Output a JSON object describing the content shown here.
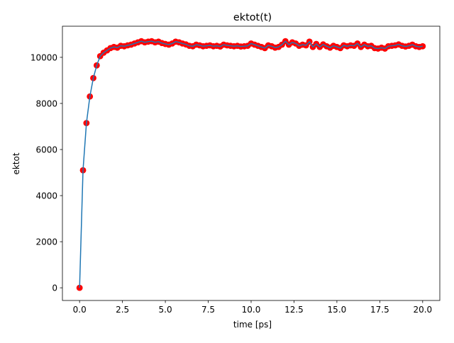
{
  "chart_data": {
    "type": "scatter",
    "title": "ektot(t)",
    "xlabel": "time [ps]",
    "ylabel": "ektot",
    "xlim": [
      -1.0,
      21.0
    ],
    "ylim": [
      -550,
      11350
    ],
    "xticks": [
      0.0,
      2.5,
      5.0,
      7.5,
      10.0,
      12.5,
      15.0,
      17.5,
      20.0
    ],
    "xtick_labels": [
      "0.0",
      "2.5",
      "5.0",
      "7.5",
      "10.0",
      "12.5",
      "15.0",
      "17.5",
      "20.0"
    ],
    "yticks": [
      0,
      2000,
      4000,
      6000,
      8000,
      10000
    ],
    "ytick_labels": [
      "0",
      "2000",
      "4000",
      "6000",
      "8000",
      "10000"
    ],
    "grid": false,
    "series": [
      {
        "style": "line",
        "color": "#1f77b4",
        "x": [
          0.0,
          0.2,
          0.4,
          0.6,
          0.8,
          1.0,
          1.2,
          1.4,
          1.6,
          1.8,
          2.0,
          2.2,
          2.4,
          2.6,
          2.8,
          3.0,
          3.2,
          3.4,
          3.6,
          3.8,
          4.0,
          4.2,
          4.4,
          4.6,
          4.8,
          5.0,
          5.2,
          5.4,
          5.6,
          5.8,
          6.0,
          6.2,
          6.4,
          6.6,
          6.8,
          7.0,
          7.2,
          7.4,
          7.6,
          7.8,
          8.0,
          8.2,
          8.4,
          8.6,
          8.8,
          9.0,
          9.2,
          9.4,
          9.6,
          9.8,
          10.0,
          10.2,
          10.4,
          10.6,
          10.8,
          11.0,
          11.2,
          11.4,
          11.6,
          11.8,
          12.0,
          12.2,
          12.4,
          12.6,
          12.8,
          13.0,
          13.2,
          13.4,
          13.6,
          13.8,
          14.0,
          14.2,
          14.4,
          14.6,
          14.8,
          15.0,
          15.2,
          15.4,
          15.6,
          15.8,
          16.0,
          16.2,
          16.4,
          16.6,
          16.8,
          17.0,
          17.2,
          17.4,
          17.6,
          17.8,
          18.0,
          18.2,
          18.4,
          18.6,
          18.8,
          19.0,
          19.2,
          19.4,
          19.6,
          19.8,
          20.0
        ],
        "y": [
          0,
          5100,
          7150,
          8300,
          9100,
          9650,
          10050,
          10200,
          10300,
          10400,
          10450,
          10420,
          10500,
          10480,
          10520,
          10550,
          10600,
          10650,
          10700,
          10650,
          10680,
          10700,
          10650,
          10680,
          10620,
          10580,
          10550,
          10600,
          10680,
          10650,
          10600,
          10560,
          10500,
          10480,
          10550,
          10520,
          10480,
          10500,
          10520,
          10480,
          10500,
          10470,
          10550,
          10520,
          10500,
          10480,
          10500,
          10470,
          10480,
          10500,
          10600,
          10550,
          10500,
          10450,
          10400,
          10520,
          10480,
          10420,
          10450,
          10550,
          10700,
          10550,
          10650,
          10600,
          10500,
          10550,
          10520,
          10680,
          10450,
          10580,
          10450,
          10560,
          10480,
          10420,
          10500,
          10450,
          10400,
          10520,
          10480,
          10520,
          10500,
          10600,
          10450,
          10550,
          10480,
          10500,
          10400,
          10380,
          10420,
          10380,
          10480,
          10500,
          10520,
          10560,
          10500,
          10470,
          10500,
          10550,
          10480,
          10450,
          10480
        ]
      },
      {
        "style": "scatter",
        "color": "#ff0000",
        "x": [
          0.0,
          0.2,
          0.4,
          0.6,
          0.8,
          1.0,
          1.2,
          1.4,
          1.6,
          1.8,
          2.0,
          2.2,
          2.4,
          2.6,
          2.8,
          3.0,
          3.2,
          3.4,
          3.6,
          3.8,
          4.0,
          4.2,
          4.4,
          4.6,
          4.8,
          5.0,
          5.2,
          5.4,
          5.6,
          5.8,
          6.0,
          6.2,
          6.4,
          6.6,
          6.8,
          7.0,
          7.2,
          7.4,
          7.6,
          7.8,
          8.0,
          8.2,
          8.4,
          8.6,
          8.8,
          9.0,
          9.2,
          9.4,
          9.6,
          9.8,
          10.0,
          10.2,
          10.4,
          10.6,
          10.8,
          11.0,
          11.2,
          11.4,
          11.6,
          11.8,
          12.0,
          12.2,
          12.4,
          12.6,
          12.8,
          13.0,
          13.2,
          13.4,
          13.6,
          13.8,
          14.0,
          14.2,
          14.4,
          14.6,
          14.8,
          15.0,
          15.2,
          15.4,
          15.6,
          15.8,
          16.0,
          16.2,
          16.4,
          16.6,
          16.8,
          17.0,
          17.2,
          17.4,
          17.6,
          17.8,
          18.0,
          18.2,
          18.4,
          18.6,
          18.8,
          19.0,
          19.2,
          19.4,
          19.6,
          19.8,
          20.0
        ],
        "y": [
          0,
          5100,
          7150,
          8300,
          9100,
          9650,
          10050,
          10200,
          10300,
          10400,
          10450,
          10420,
          10500,
          10480,
          10520,
          10550,
          10600,
          10650,
          10700,
          10650,
          10680,
          10700,
          10650,
          10680,
          10620,
          10580,
          10550,
          10600,
          10680,
          10650,
          10600,
          10560,
          10500,
          10480,
          10550,
          10520,
          10480,
          10500,
          10520,
          10480,
          10500,
          10470,
          10550,
          10520,
          10500,
          10480,
          10500,
          10470,
          10480,
          10500,
          10600,
          10550,
          10500,
          10450,
          10400,
          10520,
          10480,
          10420,
          10450,
          10550,
          10700,
          10550,
          10650,
          10600,
          10500,
          10550,
          10520,
          10680,
          10450,
          10580,
          10450,
          10560,
          10480,
          10420,
          10500,
          10450,
          10400,
          10520,
          10480,
          10520,
          10500,
          10600,
          10450,
          10550,
          10480,
          10500,
          10400,
          10380,
          10420,
          10380,
          10480,
          10500,
          10520,
          10560,
          10500,
          10470,
          10500,
          10550,
          10480,
          10450,
          10480
        ]
      }
    ]
  }
}
